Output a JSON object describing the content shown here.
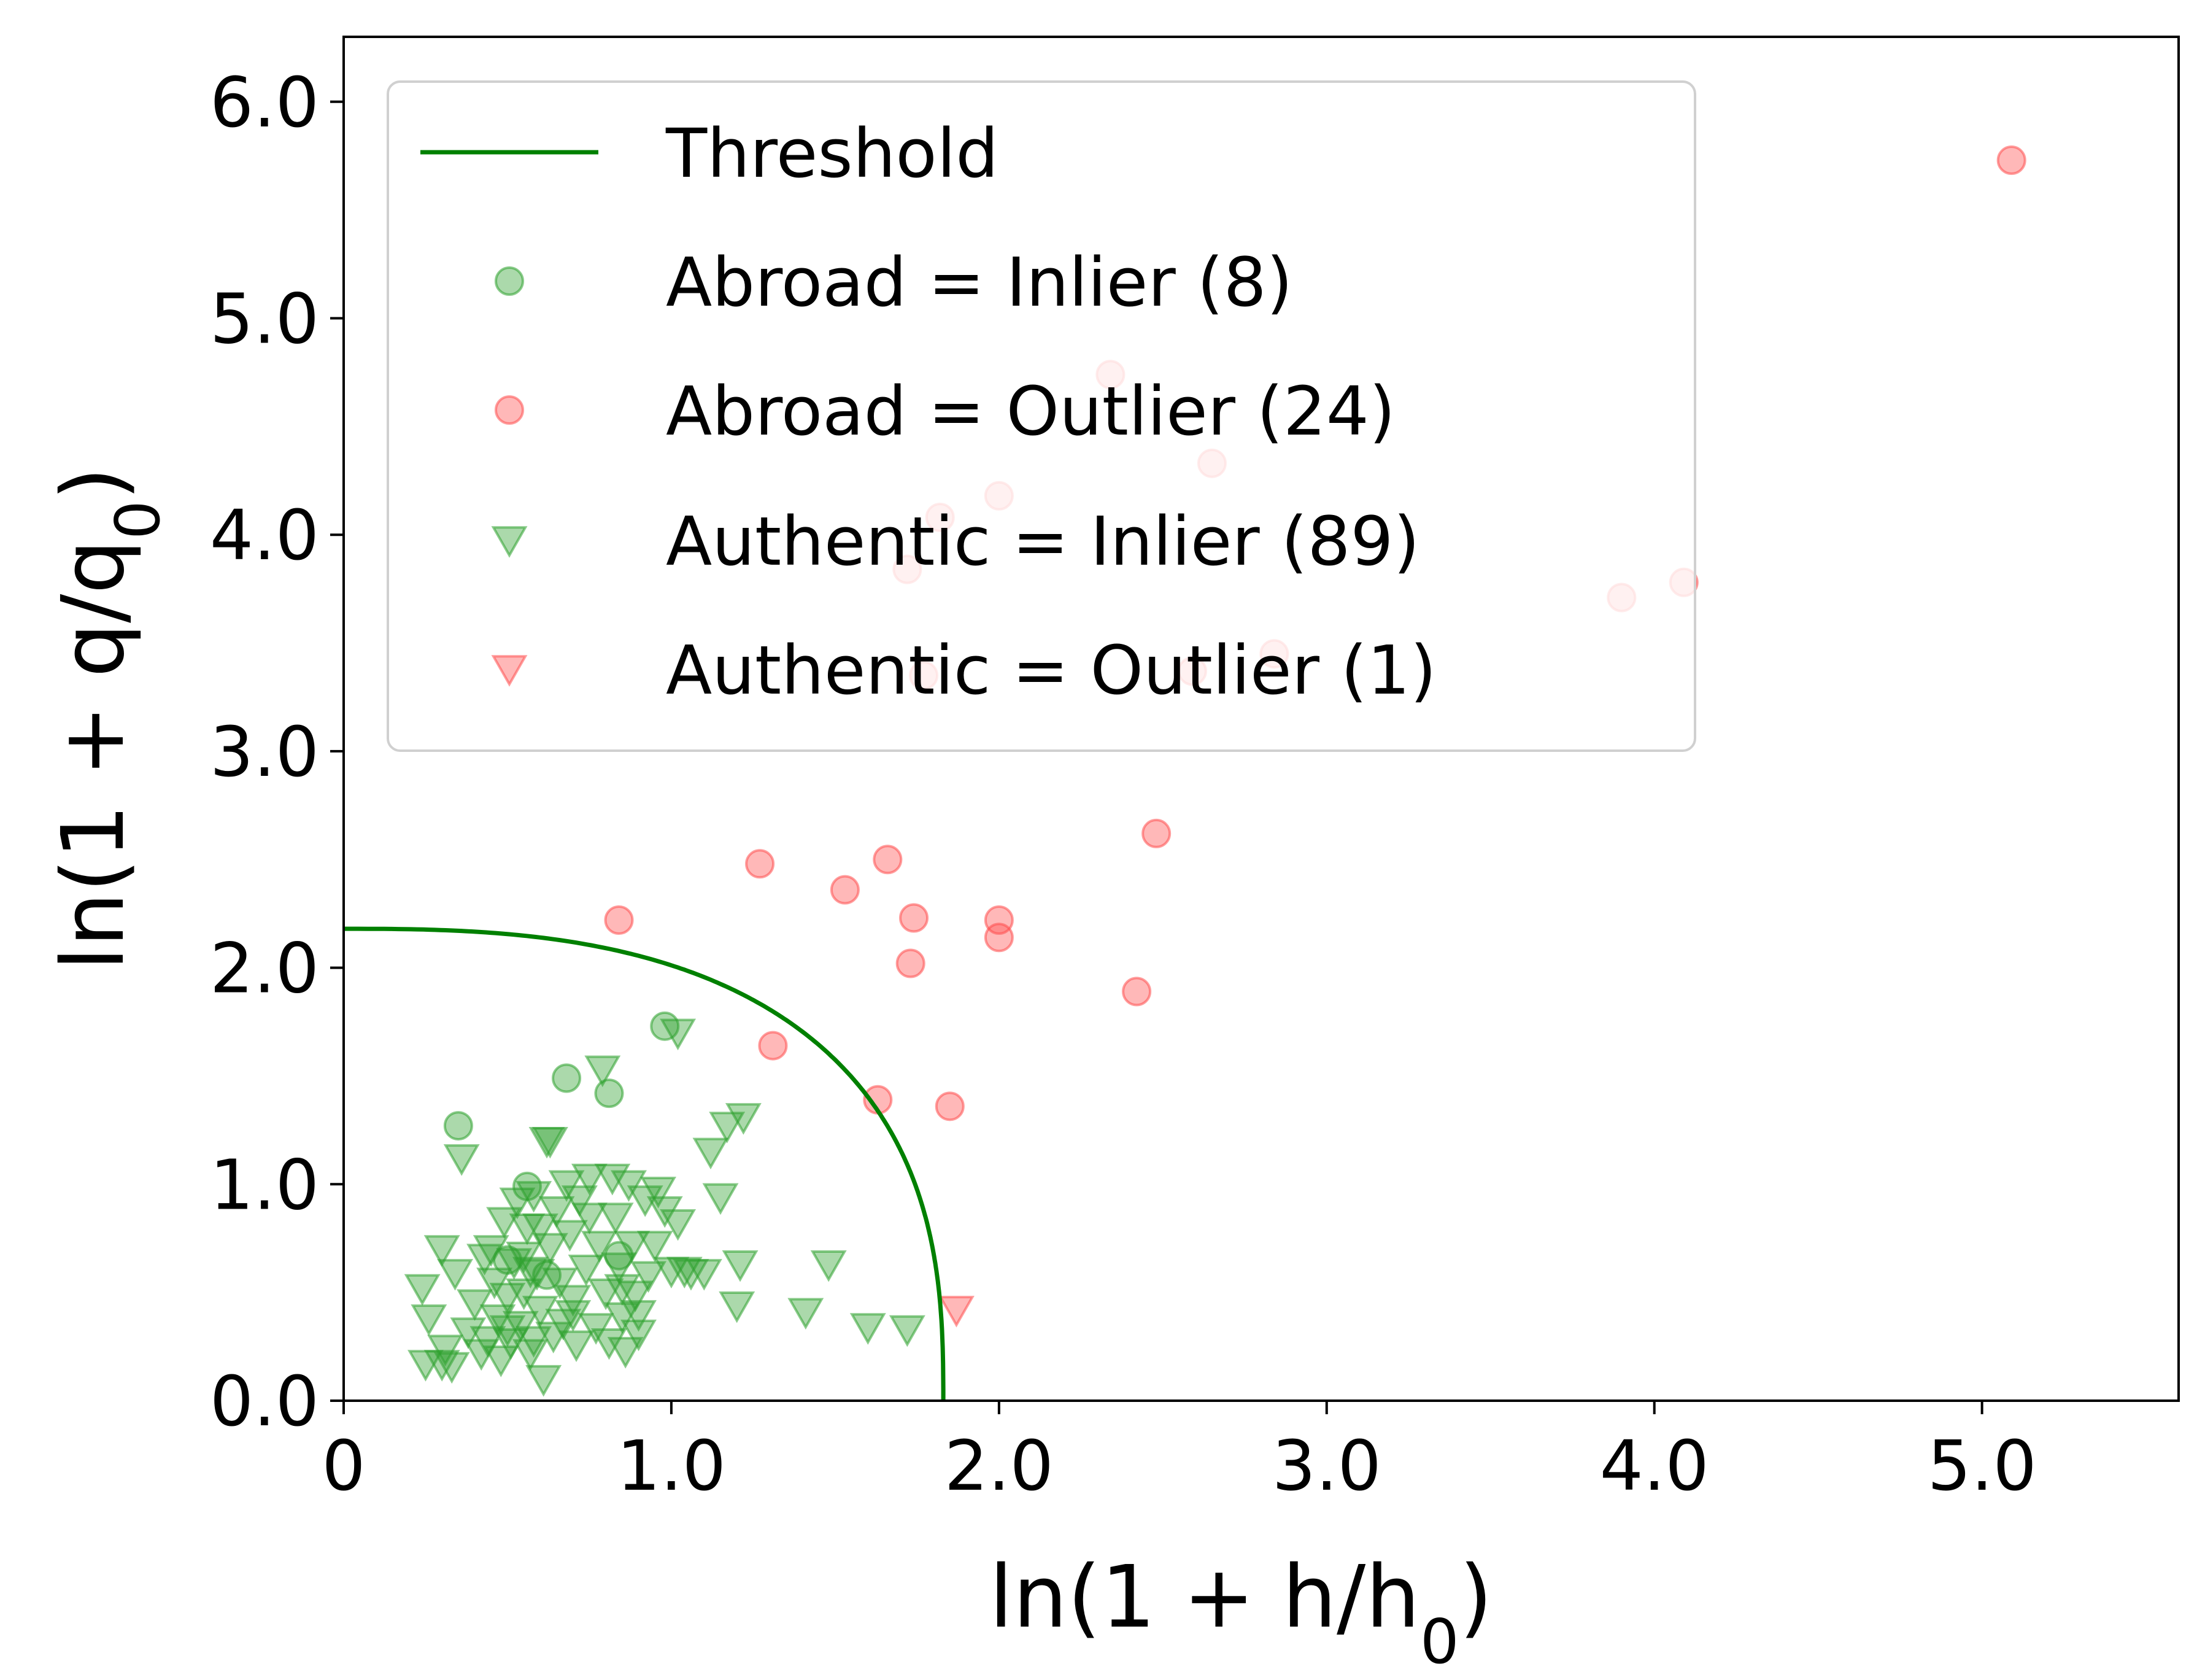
{
  "chart_data": {
    "type": "scatter",
    "xlabel": "ln(1 + h/h0)",
    "ylabel": "ln(1 + q/q0)",
    "xlim": [
      0,
      5.6
    ],
    "ylim": [
      0,
      6.3
    ],
    "xticks": [
      {
        "value": 0,
        "label": "0"
      },
      {
        "value": 1,
        "label": "1.0"
      },
      {
        "value": 2,
        "label": "2.0"
      },
      {
        "value": 3,
        "label": "3.0"
      },
      {
        "value": 4,
        "label": "4.0"
      },
      {
        "value": 5,
        "label": "5.0"
      }
    ],
    "yticks": [
      {
        "value": 0,
        "label": "0.0"
      },
      {
        "value": 1,
        "label": "1.0"
      },
      {
        "value": 2,
        "label": "2.0"
      },
      {
        "value": 3,
        "label": "3.0"
      },
      {
        "value": 4,
        "label": "4.0"
      },
      {
        "value": 5,
        "label": "5.0"
      },
      {
        "value": 6,
        "label": "6.0"
      }
    ],
    "grid": false,
    "legend_position": "upper-left",
    "threshold": {
      "name": "Threshold",
      "color": "#008000",
      "a": 1.83,
      "b": 2.18,
      "p": 2.7
    },
    "series": [
      {
        "name": "Abroad = Inlier (8)",
        "marker": "circle",
        "color": "#2ca02c",
        "points": [
          [
            0.35,
            1.27
          ],
          [
            0.68,
            1.49
          ],
          [
            0.81,
            1.42
          ],
          [
            0.98,
            1.73
          ],
          [
            0.56,
            0.99
          ],
          [
            0.84,
            0.67
          ],
          [
            0.5,
            0.65
          ],
          [
            0.62,
            0.58
          ]
        ]
      },
      {
        "name": "Abroad = Outlier (24)",
        "marker": "circle",
        "color": "#ff4d4d",
        "points": [
          [
            5.09,
            5.73
          ],
          [
            0.84,
            2.22
          ],
          [
            1.27,
            2.48
          ],
          [
            1.53,
            2.36
          ],
          [
            1.66,
            2.5
          ],
          [
            1.74,
            2.23
          ],
          [
            1.73,
            2.02
          ],
          [
            1.31,
            1.64
          ],
          [
            1.63,
            1.39
          ],
          [
            1.85,
            1.36
          ],
          [
            2.0,
            2.22
          ],
          [
            2.0,
            2.14
          ],
          [
            2.42,
            1.89
          ],
          [
            2.48,
            2.62
          ],
          [
            2.34,
            4.74
          ],
          [
            2.65,
            4.33
          ],
          [
            2.0,
            4.18
          ],
          [
            1.82,
            4.08
          ],
          [
            1.72,
            3.84
          ],
          [
            1.77,
            3.35
          ],
          [
            2.59,
            3.37
          ],
          [
            2.84,
            3.45
          ],
          [
            3.9,
            3.71
          ],
          [
            4.09,
            3.78
          ]
        ]
      },
      {
        "name": "Authentic = Inlier (89)",
        "marker": "triangle-down",
        "color": "#2ca02c",
        "points": [
          [
            0.24,
            0.52
          ],
          [
            0.26,
            0.38
          ],
          [
            0.25,
            0.17
          ],
          [
            0.3,
            0.7
          ],
          [
            0.31,
            0.24
          ],
          [
            0.33,
            0.16
          ],
          [
            0.36,
            1.12
          ],
          [
            0.34,
            0.59
          ],
          [
            0.38,
            0.32
          ],
          [
            0.4,
            0.45
          ],
          [
            0.42,
            0.22
          ],
          [
            0.43,
            0.66
          ],
          [
            0.44,
            0.28
          ],
          [
            0.46,
            0.55
          ],
          [
            0.47,
            0.38
          ],
          [
            0.48,
            0.19
          ],
          [
            0.49,
            0.83
          ],
          [
            0.5,
            0.48
          ],
          [
            0.51,
            0.27
          ],
          [
            0.52,
            0.64
          ],
          [
            0.53,
            0.92
          ],
          [
            0.54,
            0.35
          ],
          [
            0.55,
            0.5
          ],
          [
            0.56,
            0.8
          ],
          [
            0.57,
            0.22
          ],
          [
            0.58,
            0.95
          ],
          [
            0.59,
            0.59
          ],
          [
            0.6,
            0.42
          ],
          [
            0.61,
            0.1
          ],
          [
            0.62,
            1.2
          ],
          [
            0.63,
            0.71
          ],
          [
            0.64,
            0.3
          ],
          [
            0.65,
            0.88
          ],
          [
            0.66,
            0.55
          ],
          [
            0.67,
            0.36
          ],
          [
            0.68,
            1.0
          ],
          [
            0.69,
            0.77
          ],
          [
            0.7,
            0.47
          ],
          [
            0.71,
            0.26
          ],
          [
            0.72,
            0.93
          ],
          [
            0.74,
            0.61
          ],
          [
            0.75,
            1.03
          ],
          [
            0.77,
            0.34
          ],
          [
            0.78,
            0.72
          ],
          [
            0.8,
            0.5
          ],
          [
            0.81,
            0.27
          ],
          [
            0.82,
            1.03
          ],
          [
            0.83,
            0.85
          ],
          [
            0.84,
            0.62
          ],
          [
            0.85,
            0.39
          ],
          [
            0.86,
            0.23
          ],
          [
            0.87,
            1.0
          ],
          [
            0.88,
            0.72
          ],
          [
            0.89,
            0.49
          ],
          [
            0.9,
            0.31
          ],
          [
            0.92,
            0.93
          ],
          [
            0.93,
            0.58
          ],
          [
            0.95,
            0.72
          ],
          [
            0.96,
            0.97
          ],
          [
            0.98,
            0.88
          ],
          [
            1.0,
            0.6
          ],
          [
            1.02,
            0.82
          ],
          [
            1.04,
            0.6
          ],
          [
            1.06,
            0.59
          ],
          [
            1.1,
            0.59
          ],
          [
            1.12,
            1.15
          ],
          [
            1.15,
            0.94
          ],
          [
            1.17,
            1.27
          ],
          [
            1.21,
            0.63
          ],
          [
            1.22,
            1.31
          ],
          [
            1.2,
            0.44
          ],
          [
            1.41,
            0.41
          ],
          [
            1.48,
            0.63
          ],
          [
            1.6,
            0.34
          ],
          [
            1.72,
            0.33
          ],
          [
            1.02,
            1.7
          ],
          [
            0.79,
            1.53
          ],
          [
            0.57,
            0.6
          ],
          [
            0.6,
            0.8
          ],
          [
            0.55,
            0.67
          ],
          [
            0.63,
            1.2
          ],
          [
            0.45,
            0.7
          ],
          [
            0.3,
            0.17
          ],
          [
            0.5,
            0.33
          ],
          [
            0.7,
            0.4
          ],
          [
            0.9,
            0.4
          ],
          [
            0.75,
            0.85
          ],
          [
            0.85,
            0.52
          ],
          [
            0.58,
            0.28
          ]
        ]
      },
      {
        "name": "Authentic = Outlier (1)",
        "marker": "triangle-down",
        "color": "#ff4d4d",
        "points": [
          [
            1.87,
            0.42
          ]
        ]
      }
    ]
  }
}
